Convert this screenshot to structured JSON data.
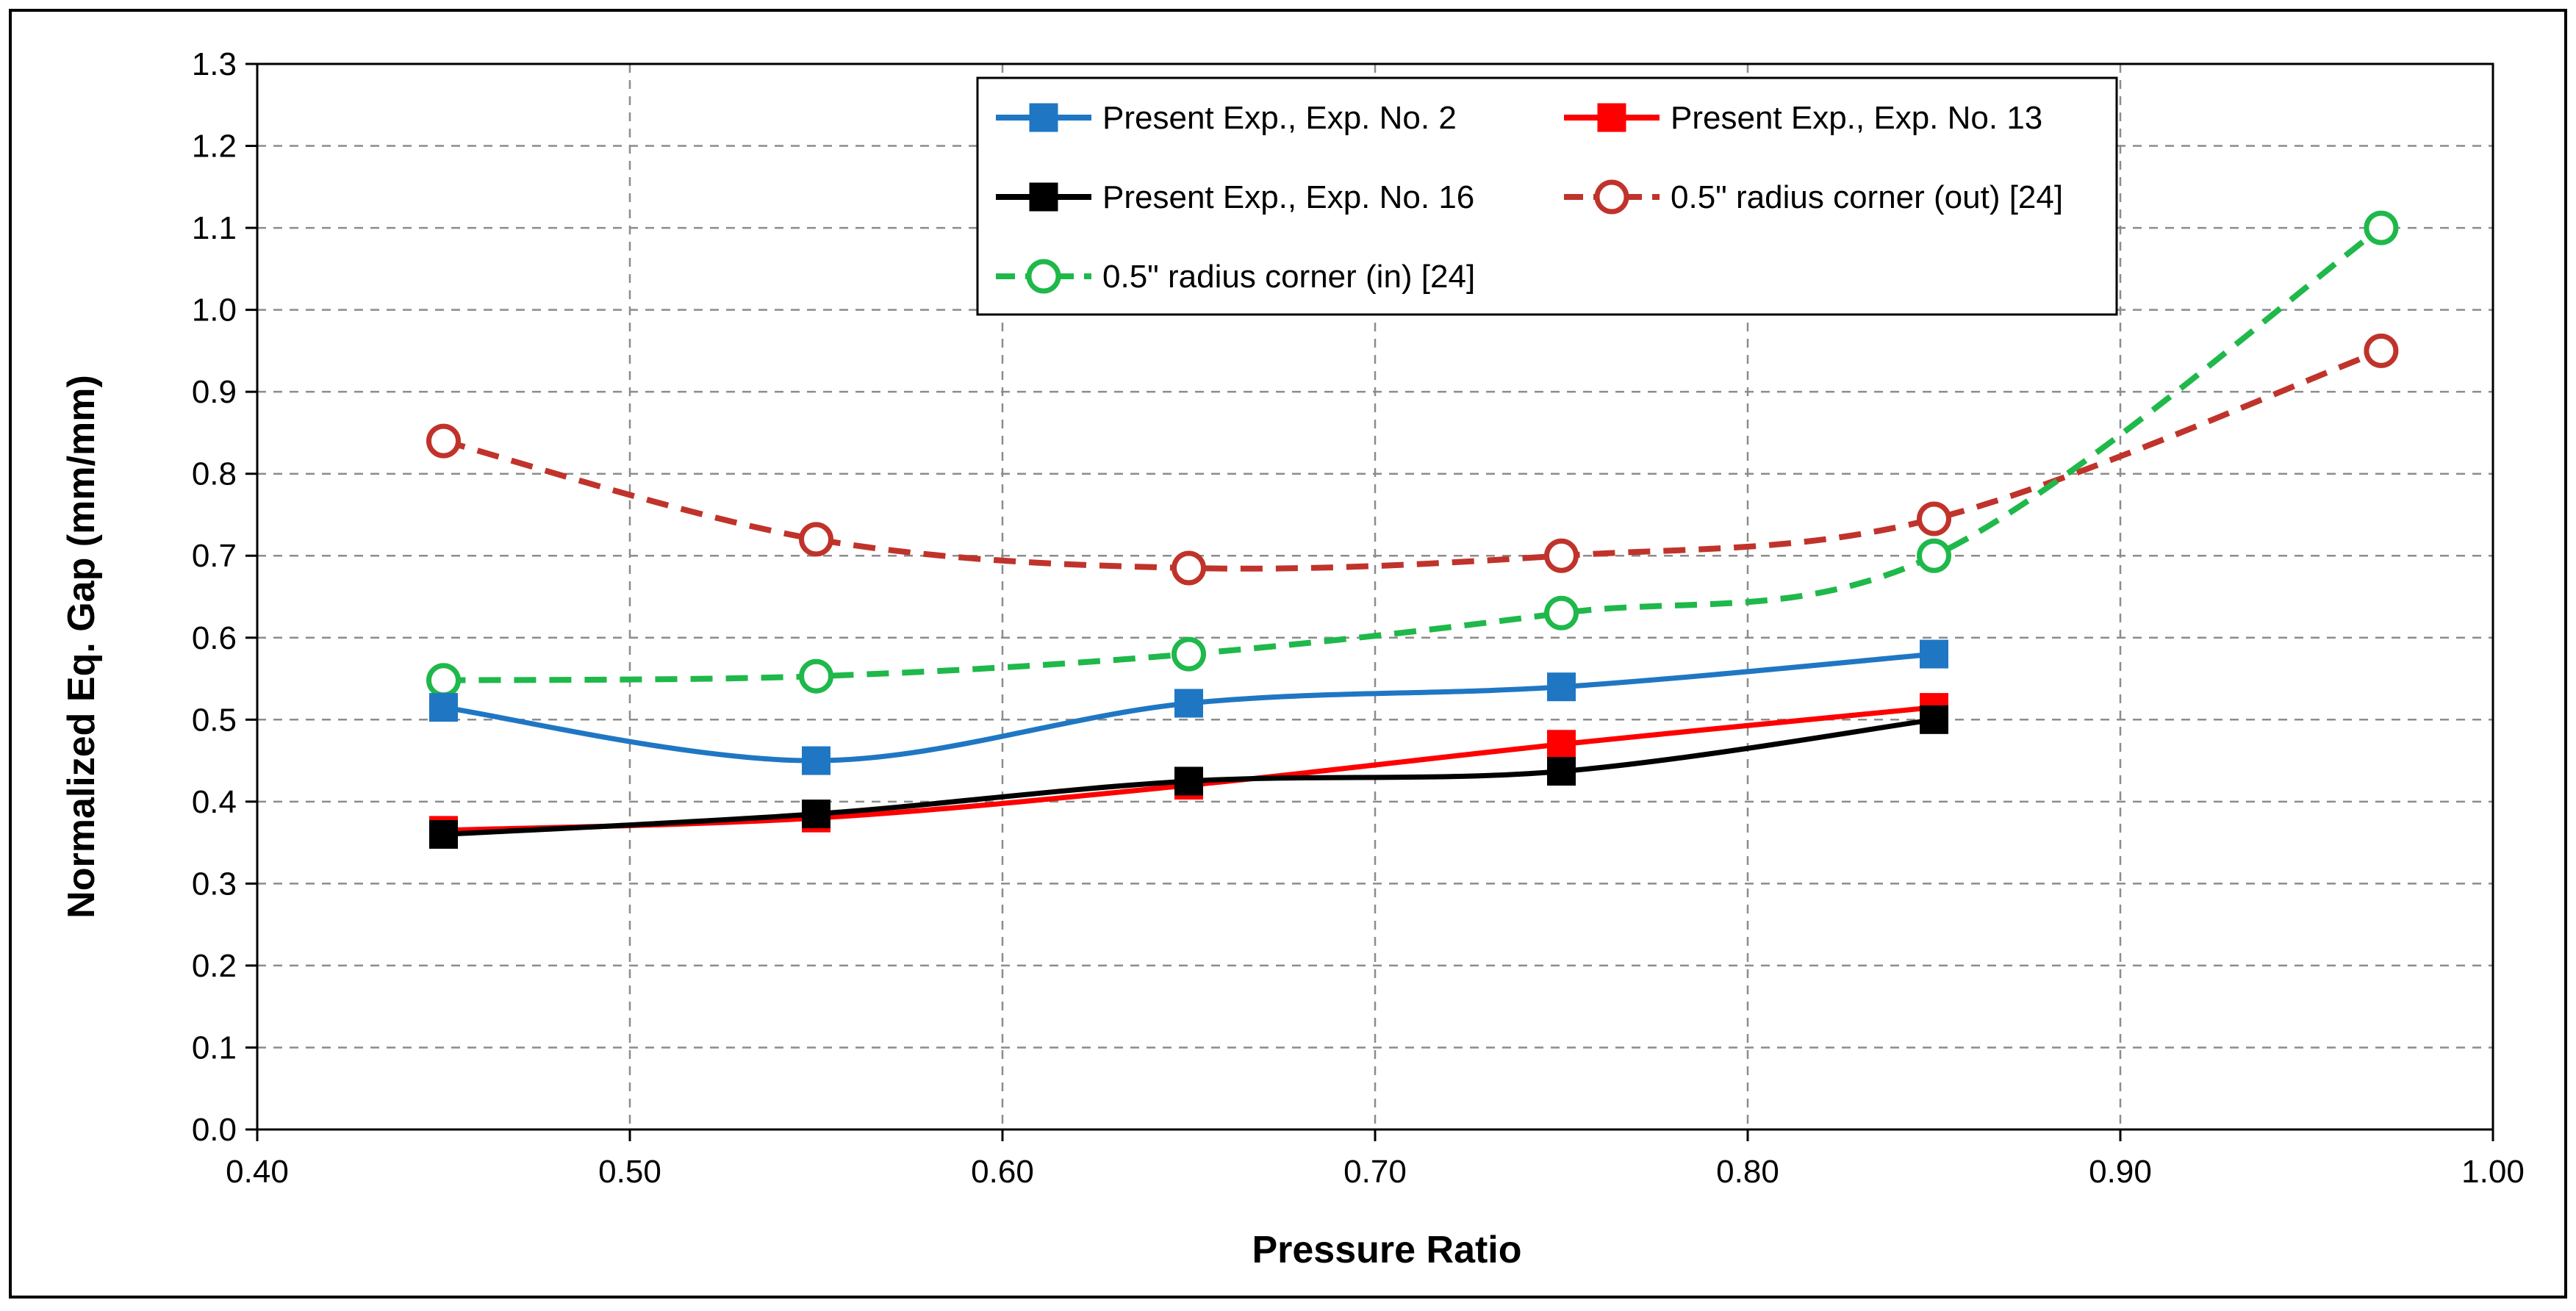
{
  "chart_data": {
    "type": "line",
    "title": "",
    "xlabel": "Pressure Ratio",
    "ylabel": "Normalized Eq. Gap (mm/mm)",
    "xlim": [
      0.4,
      1.0
    ],
    "ylim": [
      0.0,
      1.3
    ],
    "x_ticks": [
      "0.40",
      "0.50",
      "0.60",
      "0.70",
      "0.80",
      "0.90",
      "1.00"
    ],
    "y_ticks": [
      "0.0",
      "0.1",
      "0.2",
      "0.3",
      "0.4",
      "0.5",
      "0.6",
      "0.7",
      "0.8",
      "0.9",
      "1.0",
      "1.1",
      "1.2",
      "1.3"
    ],
    "grid": true,
    "legend_position": "top-center",
    "series": [
      {
        "name": "Present Exp., Exp. No. 2",
        "color": "#1f77c4",
        "marker": "filled-square",
        "line_style": "solid",
        "x": [
          0.45,
          0.55,
          0.65,
          0.75,
          0.85
        ],
        "y": [
          0.515,
          0.45,
          0.52,
          0.54,
          0.58
        ]
      },
      {
        "name": "Present Exp., Exp. No. 13",
        "color": "#ff0000",
        "marker": "filled-square",
        "line_style": "solid",
        "x": [
          0.45,
          0.55,
          0.65,
          0.75,
          0.85
        ],
        "y": [
          0.365,
          0.38,
          0.42,
          0.47,
          0.515
        ]
      },
      {
        "name": "Present Exp., Exp. No. 16",
        "color": "#000000",
        "marker": "filled-square",
        "line_style": "solid",
        "x": [
          0.45,
          0.55,
          0.65,
          0.75,
          0.85
        ],
        "y": [
          0.36,
          0.385,
          0.425,
          0.437,
          0.5
        ]
      },
      {
        "name": "0.5\" radius corner (out) [24]",
        "color": "#c0332b",
        "marker": "hollow-circle",
        "line_style": "dashed",
        "x": [
          0.45,
          0.55,
          0.65,
          0.75,
          0.85,
          0.97
        ],
        "y": [
          0.84,
          0.72,
          0.685,
          0.7,
          0.745,
          0.95
        ]
      },
      {
        "name": "0.5\" radius corner (in) [24]",
        "color": "#1fb84a",
        "marker": "hollow-circle",
        "line_style": "dashed",
        "x": [
          0.45,
          0.55,
          0.65,
          0.75,
          0.85,
          0.97
        ],
        "y": [
          0.548,
          0.553,
          0.58,
          0.63,
          0.7,
          1.1
        ]
      }
    ]
  }
}
